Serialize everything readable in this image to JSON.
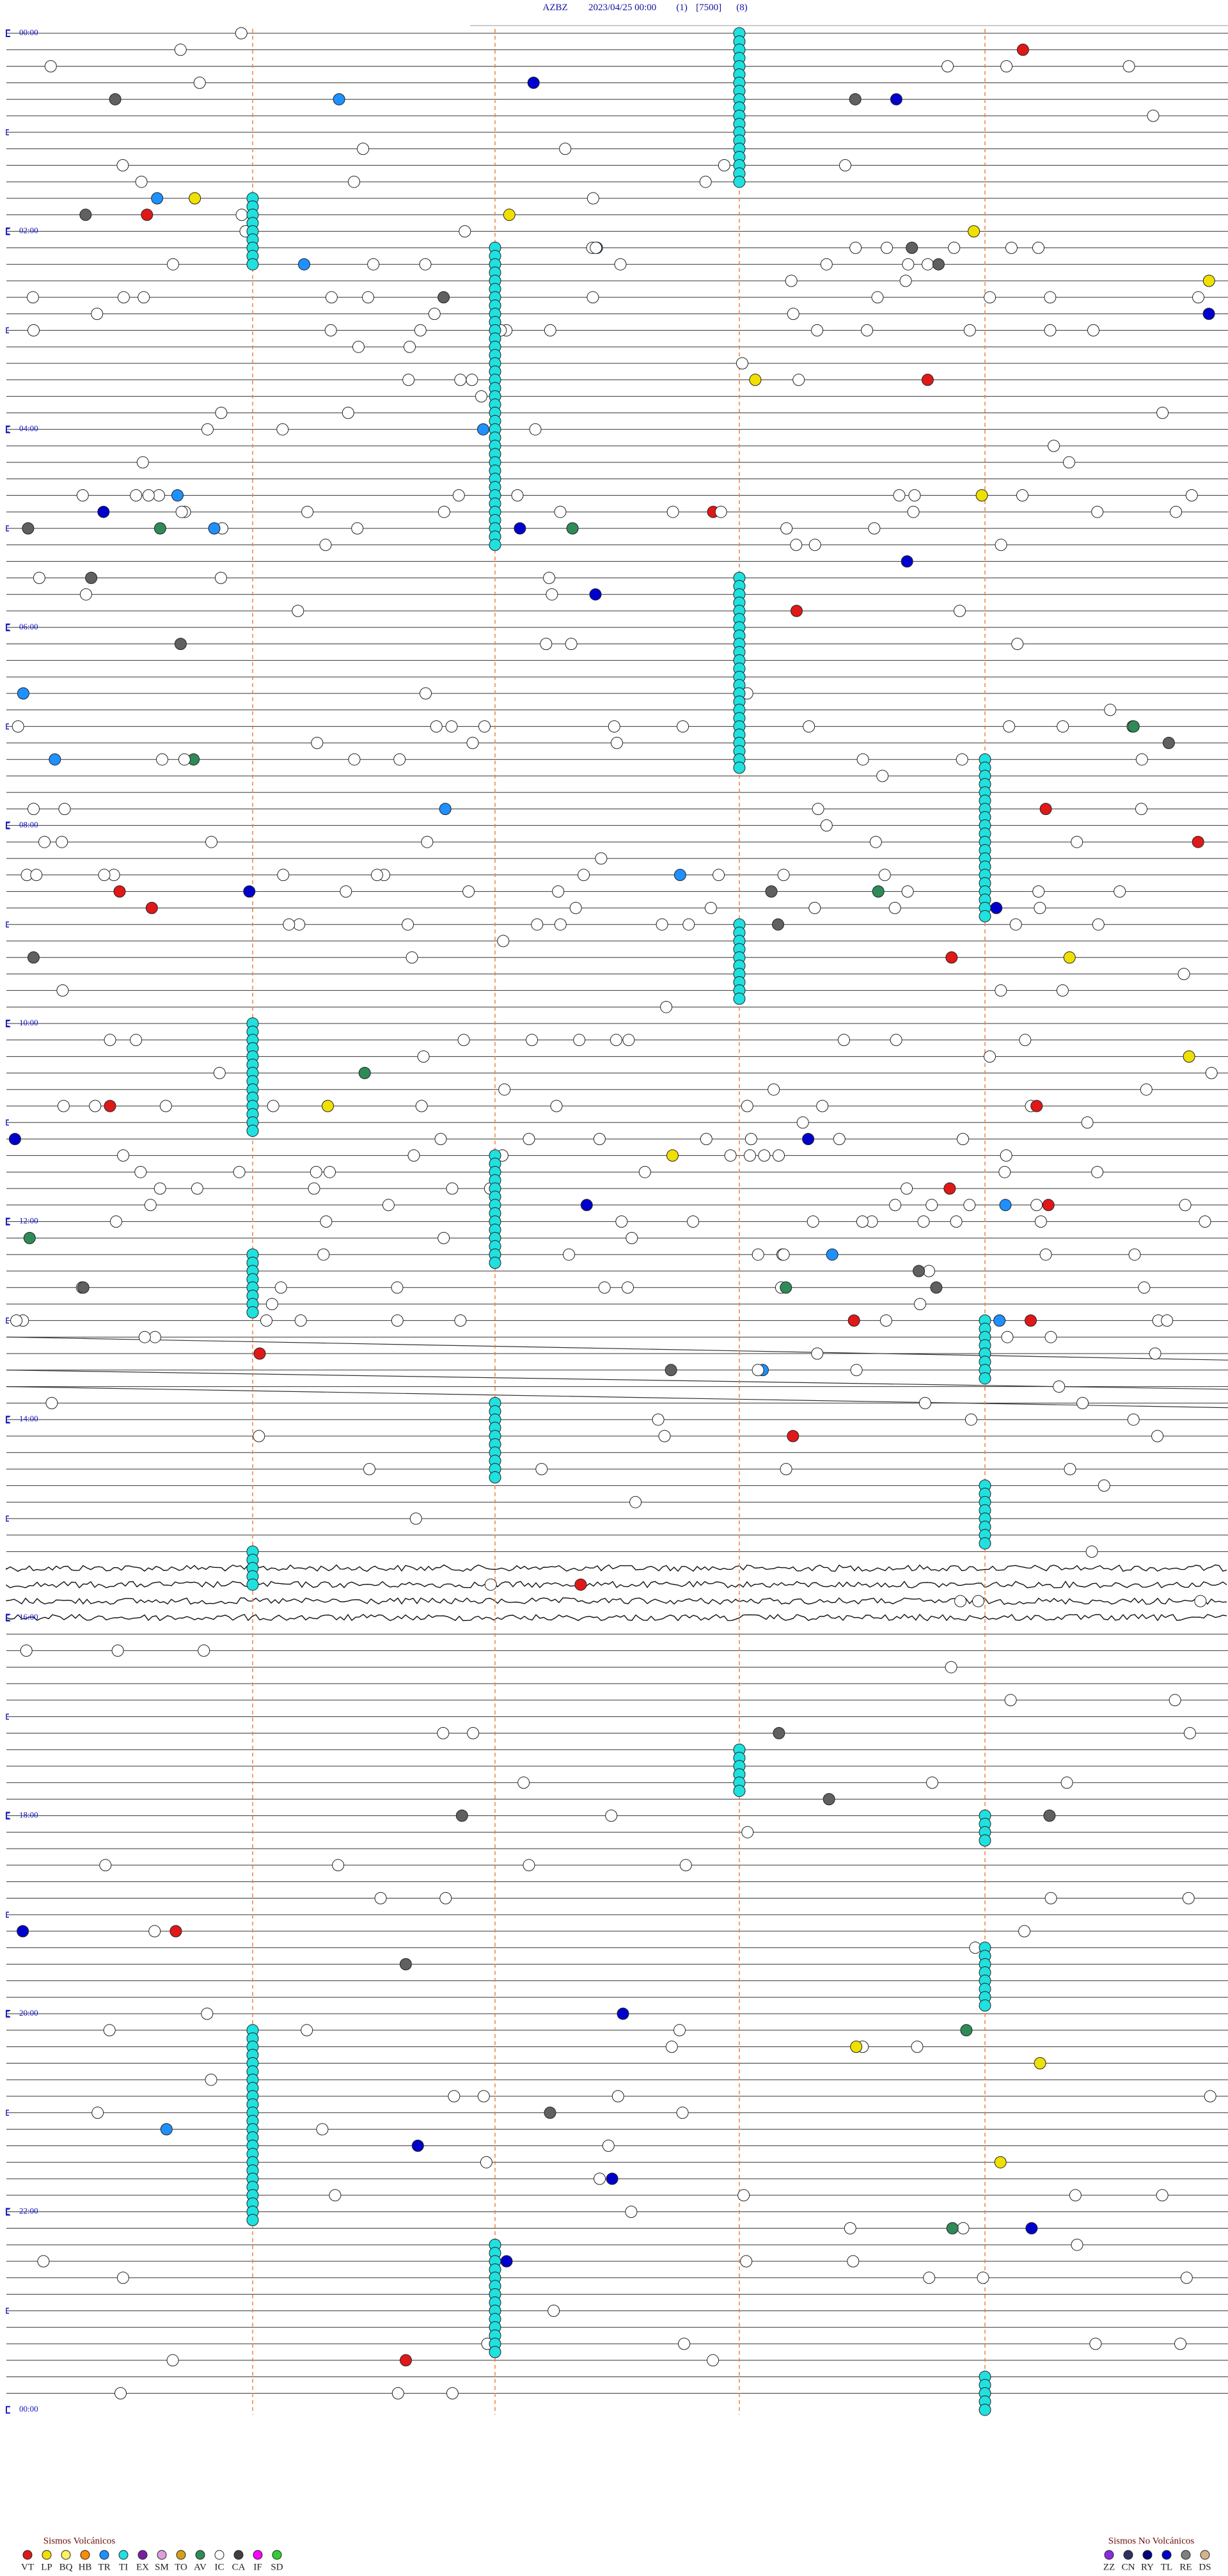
{
  "header": {
    "station": "AZBZ",
    "datetime": "2023/04/25 00:00",
    "channel": "(1)",
    "scale": "[7500]",
    "filter": "(8)"
  },
  "time_labels": [
    "00:00",
    "02:00",
    "04:00",
    "06:00",
    "08:00",
    "10:00",
    "12:00",
    "14:00",
    "16:00",
    "18:00",
    "20:00",
    "22:00",
    "00:00"
  ],
  "legend": {
    "volcanic": {
      "title": "Sismos Volcánicos",
      "items": [
        {
          "code": "VT",
          "color": "#e01818"
        },
        {
          "code": "LP",
          "color": "#f0e000"
        },
        {
          "code": "BQ",
          "color": "#fff060"
        },
        {
          "code": "HB",
          "color": "#ff8c00"
        },
        {
          "code": "TR",
          "color": "#1e90ff"
        },
        {
          "code": "TI",
          "color": "#20e0e0"
        },
        {
          "code": "EX",
          "color": "#7a1fa0"
        },
        {
          "code": "SM",
          "color": "#dda0dd"
        },
        {
          "code": "TO",
          "color": "#d4a017"
        },
        {
          "code": "AV",
          "color": "#2e8b57"
        },
        {
          "code": "IC",
          "color": "#ffffff"
        },
        {
          "code": "CA",
          "color": "#404040"
        },
        {
          "code": "IF",
          "color": "#ff00ff"
        },
        {
          "code": "SD",
          "color": "#32cd32"
        }
      ]
    },
    "non_volcanic": {
      "title": "Sismos No Volcánicos",
      "items": [
        {
          "code": "ZZ",
          "color": "#8a2be2"
        },
        {
          "code": "CN",
          "color": "#303060"
        },
        {
          "code": "RY",
          "color": "#000080"
        },
        {
          "code": "TL",
          "color": "#0000cd"
        },
        {
          "code": "RE",
          "color": "#808080"
        },
        {
          "code": "DS",
          "color": "#d2b48c"
        }
      ]
    }
  }
}
